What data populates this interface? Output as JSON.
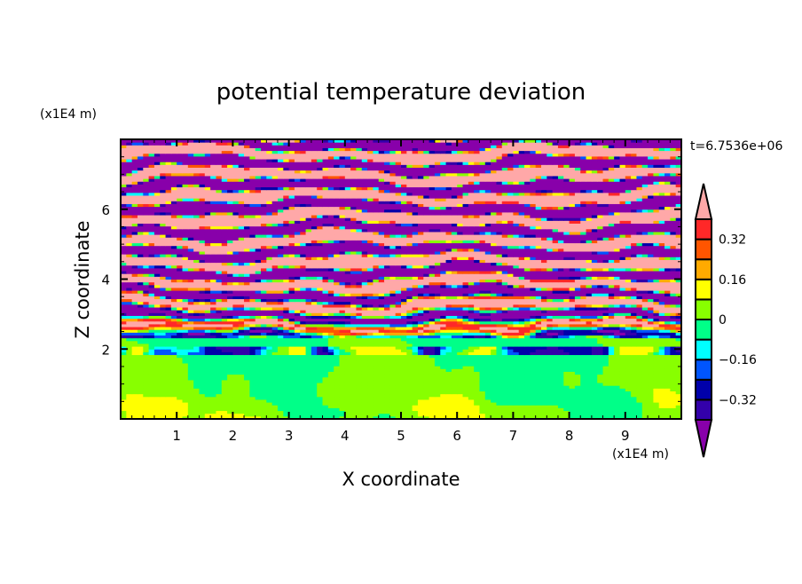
{
  "chart_data": {
    "type": "heatmap",
    "title": "potential temperature deviation",
    "xlabel": "X coordinate",
    "ylabel": "Z coordinate",
    "x_unit": "(x1E4 m)",
    "y_unit": "(x1E4 m)",
    "time_label": "t=6.7536e+06",
    "xlim": [
      0,
      10
    ],
    "ylim": [
      0,
      8
    ],
    "x_ticks": [
      "1",
      "2",
      "3",
      "4",
      "5",
      "6",
      "7",
      "8",
      "9"
    ],
    "y_ticks": [
      "2",
      "4",
      "6"
    ],
    "colorbar": {
      "levels": [
        -0.4,
        -0.32,
        -0.24,
        -0.16,
        -0.08,
        0,
        0.08,
        0.16,
        0.24,
        0.32,
        0.4
      ],
      "tick_labels": [
        "0.32",
        "0.16",
        "0",
        "−0.16",
        "−0.32"
      ],
      "tick_values": [
        0.32,
        0.16,
        0,
        -0.16,
        -0.32
      ],
      "colors": [
        "#8800aa",
        "#3300aa",
        "#0000aa",
        "#0055ff",
        "#00ffff",
        "#00ff88",
        "#88ff00",
        "#ffff00",
        "#ffaa00",
        "#ff5500",
        "#ff2828",
        "#ffa8a8"
      ],
      "extend": "both"
    },
    "structure": "alternating positive/negative horizontal bands above z≈2.3 (x1E4 m), near-neutral (0 to 0.08) below"
  }
}
